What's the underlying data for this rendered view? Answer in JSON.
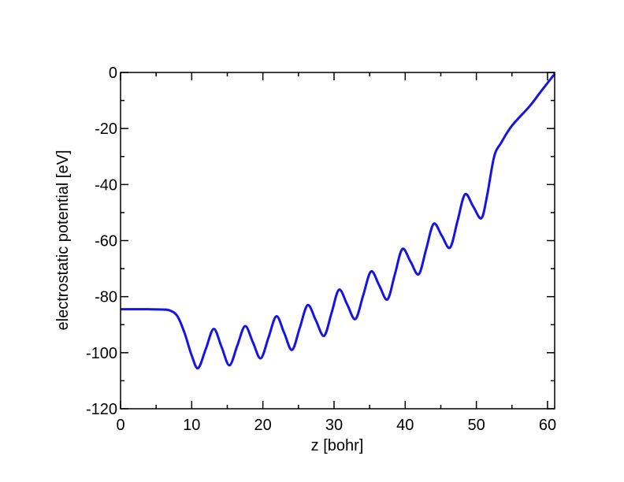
{
  "chart_data": {
    "type": "line",
    "x_label": "z [bohr]",
    "y_label": "electrostatic potential [eV]",
    "xlim": [
      0,
      61
    ],
    "ylim": [
      -120,
      0
    ],
    "xticks": [
      0,
      10,
      20,
      30,
      40,
      50,
      60
    ],
    "yticks": [
      -120,
      -100,
      -80,
      -60,
      -40,
      -20,
      0
    ],
    "x": [
      0,
      2,
      4,
      6,
      7,
      8,
      9,
      10,
      10.9,
      12,
      13.1,
      14.2,
      15.3,
      16.4,
      17.5,
      18.6,
      19.7,
      20.8,
      21.9,
      23,
      24.1,
      25.2,
      26.3,
      27.45,
      28.6,
      29.65,
      30.7,
      31.85,
      33,
      34.1,
      35.2,
      36.35,
      37.5,
      38.55,
      39.6,
      40.75,
      41.9,
      42.95,
      44,
      45.15,
      46.3,
      47.35,
      48.4,
      49.55,
      50.7,
      51.5,
      52.5,
      53.5,
      55,
      57.5,
      59,
      61
    ],
    "series": [
      {
        "color": "#1414e6",
        "values": [
          -84.5,
          -84.5,
          -84.5,
          -84.6,
          -85,
          -87,
          -93,
          -101,
          -105.5,
          -98.5,
          -91.5,
          -98,
          -104.5,
          -97.5,
          -90.5,
          -96.3,
          -102,
          -94.5,
          -87,
          -93,
          -99,
          -91,
          -83,
          -88.5,
          -94,
          -85.8,
          -77.5,
          -82.8,
          -88,
          -79.5,
          -71,
          -76,
          -81,
          -72,
          -63,
          -67.5,
          -72,
          -63,
          -54,
          -58.3,
          -62.5,
          -53,
          -43.5,
          -47.8,
          -52,
          -44,
          -30,
          -25,
          -19,
          -12,
          -7,
          -0.5
        ]
      }
    ]
  }
}
